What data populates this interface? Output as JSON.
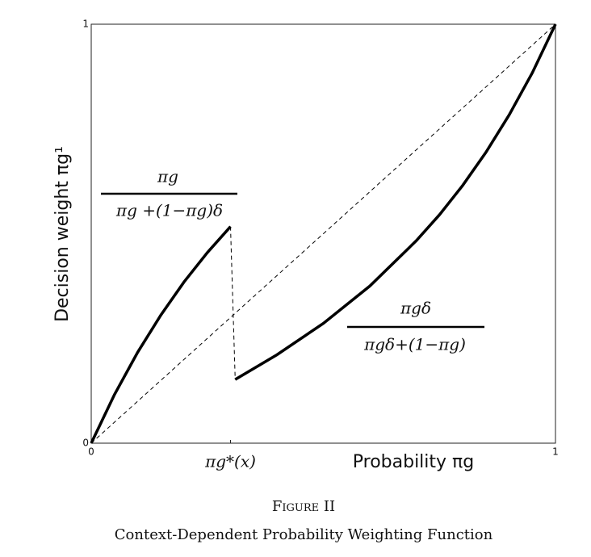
{
  "chart_data": {
    "type": "line",
    "title": "Figure II",
    "subtitle": "Context-Dependent Probability Weighting Function",
    "x_label": "Probability πg",
    "y_label": "Decision weight πg¹",
    "xlim": [
      0,
      1
    ],
    "ylim": [
      0,
      1
    ],
    "xticks": [
      0,
      {
        "value": 0.3,
        "label": "πg*(x)"
      },
      1
    ],
    "yticks": [
      0,
      1
    ],
    "series": [
      {
        "name": "diagonal",
        "color": "#000000",
        "style": "dashed",
        "x": [
          0,
          1
        ],
        "values": [
          0,
          1
        ]
      },
      {
        "name": "low",
        "color": "#000000",
        "style": "solid",
        "x": [
          0,
          0.05,
          0.1,
          0.15,
          0.2,
          0.25,
          0.3
        ],
        "values": [
          0,
          0.116,
          0.217,
          0.306,
          0.385,
          0.455,
          0.517
        ]
      },
      {
        "name": "jump",
        "color": "#000000",
        "style": "dashed",
        "x": [
          0.3,
          0.31
        ],
        "values": [
          0.517,
          0.152
        ]
      },
      {
        "name": "high",
        "color": "#000000",
        "style": "solid",
        "x": [
          0.31,
          0.4,
          0.5,
          0.6,
          0.7,
          0.75,
          0.8,
          0.85,
          0.9,
          0.95,
          1
        ],
        "values": [
          0.152,
          0.211,
          0.286,
          0.375,
          0.483,
          0.545,
          0.615,
          0.694,
          0.783,
          0.884,
          1
        ]
      }
    ],
    "annotations": [
      {
        "numerator": "πg",
        "denominator": "πg +(1−πg)δ"
      },
      {
        "numerator": "πgδ",
        "denominator": "πgδ+(1−πg)"
      }
    ]
  }
}
